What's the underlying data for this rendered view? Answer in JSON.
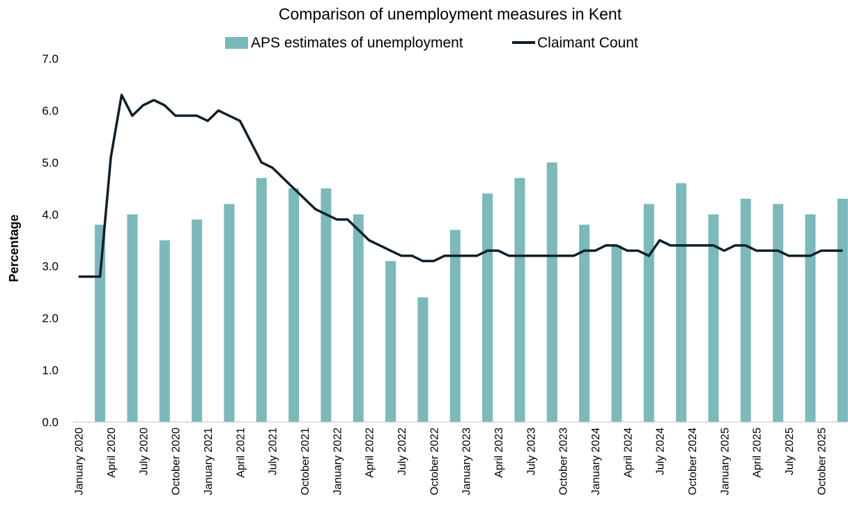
{
  "chart_data": {
    "type": "bar",
    "title": "Comparison of unemployment measures in Kent",
    "xlabel": "",
    "ylabel": "Percentage",
    "ylim": [
      0,
      7
    ],
    "y_ticks": [
      "0.0",
      "1.0",
      "2.0",
      "3.0",
      "4.0",
      "5.0",
      "6.0",
      "7.0"
    ],
    "grid": false,
    "legend_position": "top",
    "colors": {
      "bars": "#7cb9ba",
      "line": "#0f1f2b"
    },
    "x_tick_labels": [
      "January 2020",
      "April 2020",
      "July 2020",
      "October 2020",
      "January 2021",
      "April 2021",
      "July 2021",
      "October 2021",
      "January 2022",
      "April 2022",
      "July 2022",
      "October 2022",
      "January 2023",
      "April 2023",
      "July 2023",
      "October 2023",
      "January 2024",
      "April 2024",
      "July 2024",
      "October 2024",
      "January 2025",
      "April 2025",
      "July 2025",
      "October 2025"
    ],
    "series": [
      {
        "name": "APS estimates of unemployment",
        "kind": "bar",
        "period_labels": [
          "January 2020",
          "April 2020",
          "July 2020",
          "October 2020",
          "January 2021",
          "April 2021",
          "July 2021",
          "October 2021",
          "January 2022",
          "April 2022",
          "July 2022",
          "October 2022",
          "January 2023",
          "April 2023",
          "July 2023",
          "October 2023",
          "January 2024",
          "April 2024",
          "July 2024",
          "October 2024",
          "January 2025",
          "April 2025",
          "July 2025",
          "October 2025"
        ],
        "values": [
          3.8,
          4.0,
          3.5,
          3.9,
          4.2,
          4.7,
          4.5,
          4.5,
          4.0,
          3.1,
          2.4,
          3.7,
          4.4,
          4.7,
          5.0,
          3.8,
          3.4,
          4.2,
          4.6,
          4.0,
          4.3,
          4.2,
          4.0,
          4.3
        ]
      },
      {
        "name": "Claimant Count",
        "kind": "line",
        "values": [
          2.8,
          2.8,
          2.8,
          5.1,
          6.3,
          5.9,
          6.1,
          6.2,
          6.1,
          5.9,
          5.9,
          5.9,
          5.8,
          6.0,
          5.9,
          5.8,
          5.4,
          5.0,
          4.9,
          4.7,
          4.5,
          4.3,
          4.1,
          4.0,
          3.9,
          3.9,
          3.7,
          3.5,
          3.4,
          3.3,
          3.2,
          3.2,
          3.1,
          3.1,
          3.2,
          3.2,
          3.2,
          3.2,
          3.3,
          3.3,
          3.2,
          3.2,
          3.2,
          3.2,
          3.2,
          3.2,
          3.2,
          3.3,
          3.3,
          3.4,
          3.4,
          3.3,
          3.3,
          3.2,
          3.5,
          3.4,
          3.4,
          3.4,
          3.4,
          3.4,
          3.3,
          3.4,
          3.4,
          3.3,
          3.3,
          3.3,
          3.2,
          3.2,
          3.2,
          3.3,
          3.3,
          3.3
        ]
      }
    ]
  }
}
